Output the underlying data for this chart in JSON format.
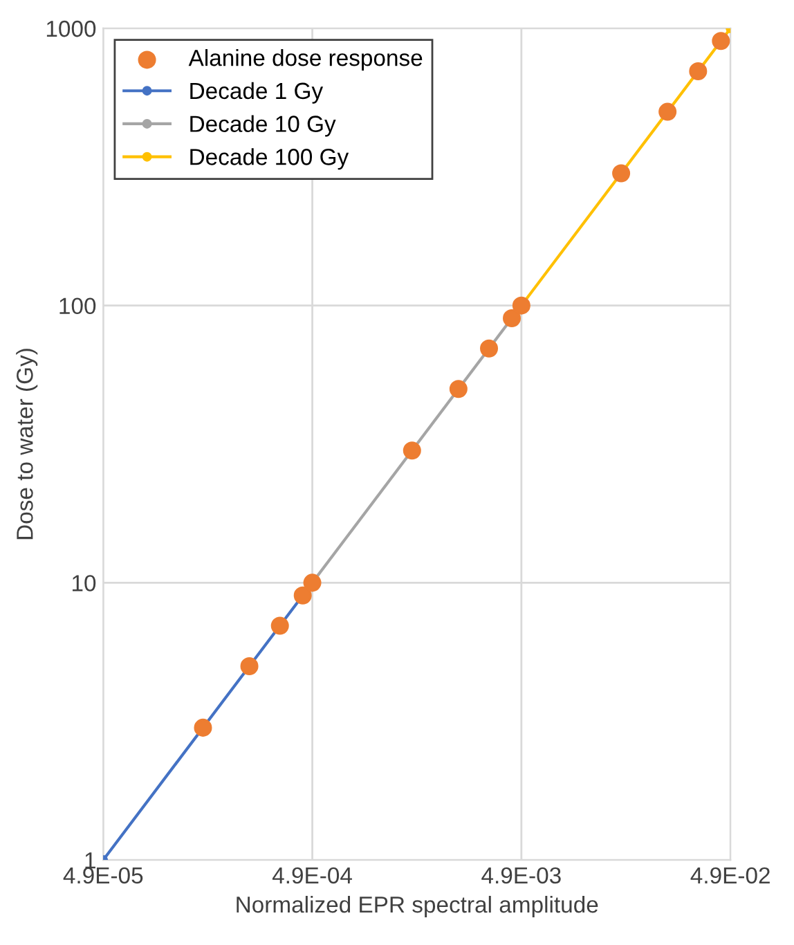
{
  "chart_data": {
    "type": "line",
    "xlabel": "Normalized EPR spectral amplitude",
    "ylabel": "Dose to water (Gy)",
    "log": "xy",
    "xlim": [
      4.9e-05,
      0.049
    ],
    "ylim": [
      1,
      1000
    ],
    "xticks": [
      {
        "value": 4.9e-05,
        "label": "4.9E-05"
      },
      {
        "value": 0.00049,
        "label": "4.9E-04"
      },
      {
        "value": 0.0049,
        "label": "4.9E-03"
      },
      {
        "value": 0.049,
        "label": "4.9E-02"
      }
    ],
    "yticks": [
      1,
      10,
      100,
      1000
    ],
    "grid": true,
    "legend": "top left",
    "series": [
      {
        "name": "Alanine dose response",
        "type": "scatter",
        "marker": "circle",
        "color": "#ed7d31",
        "x": [
          0.000147,
          0.000245,
          0.000343,
          0.000441,
          0.00049,
          0.00147,
          0.00245,
          0.00343,
          0.00441,
          0.0049,
          0.0147,
          0.0245,
          0.0343,
          0.0441
        ],
        "values": [
          3,
          5,
          7,
          9,
          10,
          30,
          50,
          70,
          90,
          100,
          300,
          500,
          700,
          900
        ]
      },
      {
        "name": "Decade 1 Gy",
        "marker": "circle",
        "color": "#4472c4",
        "x": [
          4.9e-05,
          0.00049
        ],
        "values": [
          1,
          10
        ]
      },
      {
        "name": "Decade 10 Gy",
        "marker": "circle",
        "color": "#a5a5a5",
        "x": [
          0.00049,
          0.0049
        ],
        "values": [
          10,
          100
        ]
      },
      {
        "name": "Decade 100 Gy",
        "marker": "circle",
        "color": "#ffc000",
        "x": [
          0.0049,
          0.049
        ],
        "values": [
          100,
          1000
        ]
      }
    ]
  }
}
